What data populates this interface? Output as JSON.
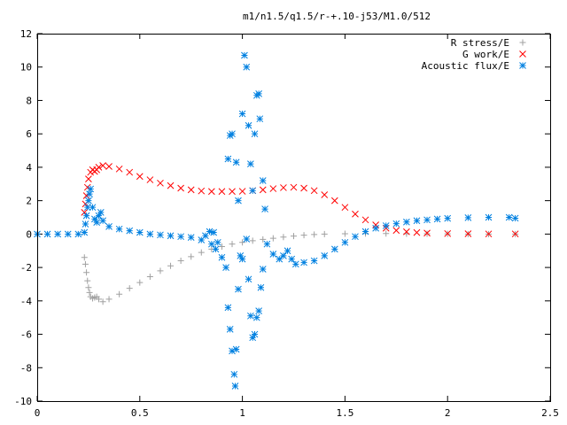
{
  "chart_data": {
    "type": "scatter",
    "title": "m1/n1.5/q1.5/r-+.10-j53/M1.0/512",
    "xlabel": "",
    "ylabel": "",
    "xlim": [
      0,
      2.5
    ],
    "ylim": [
      -10,
      12
    ],
    "xticks": [
      "0",
      "0.5",
      "1",
      "1.5",
      "2",
      "2.5"
    ],
    "xtick_values": [
      0,
      0.5,
      1,
      1.5,
      2,
      2.5
    ],
    "yticks": [
      "-10",
      "-8",
      "-6",
      "-4",
      "-2",
      "0",
      "2",
      "4",
      "6",
      "8",
      "10",
      "12"
    ],
    "ytick_values": [
      -10,
      -8,
      -6,
      -4,
      -2,
      0,
      2,
      4,
      6,
      8,
      10,
      12
    ],
    "grid": false,
    "legend_position": "top-right",
    "series": [
      {
        "name": "R stress/E",
        "marker": "plus",
        "color": "#a0a0a0",
        "points": [
          [
            0.23,
            -1.4
          ],
          [
            0.235,
            -1.8
          ],
          [
            0.24,
            -2.3
          ],
          [
            0.245,
            -2.8
          ],
          [
            0.25,
            -3.2
          ],
          [
            0.255,
            -3.5
          ],
          [
            0.26,
            -3.75
          ],
          [
            0.27,
            -3.85
          ],
          [
            0.28,
            -3.8
          ],
          [
            0.29,
            -3.75
          ],
          [
            0.3,
            -3.9
          ],
          [
            0.32,
            -4.05
          ],
          [
            0.35,
            -3.9
          ],
          [
            0.4,
            -3.6
          ],
          [
            0.45,
            -3.25
          ],
          [
            0.5,
            -2.9
          ],
          [
            0.55,
            -2.55
          ],
          [
            0.6,
            -2.2
          ],
          [
            0.65,
            -1.9
          ],
          [
            0.7,
            -1.6
          ],
          [
            0.75,
            -1.35
          ],
          [
            0.8,
            -1.1
          ],
          [
            0.85,
            -0.9
          ],
          [
            0.9,
            -0.75
          ],
          [
            0.95,
            -0.6
          ],
          [
            1.0,
            -0.5
          ],
          [
            1.05,
            -0.4
          ],
          [
            1.1,
            -0.32
          ],
          [
            1.15,
            -0.25
          ],
          [
            1.2,
            -0.18
          ],
          [
            1.25,
            -0.12
          ],
          [
            1.3,
            -0.07
          ],
          [
            1.35,
            -0.03
          ],
          [
            1.4,
            0.0
          ],
          [
            1.5,
            0.02
          ],
          [
            1.6,
            0.03
          ],
          [
            1.7,
            0.03
          ],
          [
            1.8,
            0.02
          ],
          [
            1.9,
            0.02
          ],
          [
            2.0,
            0.01
          ],
          [
            2.1,
            0.0
          ],
          [
            2.2,
            0.0
          ],
          [
            2.33,
            0.0
          ]
        ]
      },
      {
        "name": "G work/E",
        "marker": "cross",
        "color": "#ff0000",
        "points": [
          [
            0.23,
            1.3
          ],
          [
            0.235,
            1.8
          ],
          [
            0.24,
            2.3
          ],
          [
            0.245,
            2.8
          ],
          [
            0.25,
            3.3
          ],
          [
            0.26,
            3.7
          ],
          [
            0.27,
            3.85
          ],
          [
            0.28,
            3.75
          ],
          [
            0.29,
            3.85
          ],
          [
            0.3,
            4.0
          ],
          [
            0.32,
            4.1
          ],
          [
            0.35,
            4.05
          ],
          [
            0.4,
            3.9
          ],
          [
            0.45,
            3.7
          ],
          [
            0.5,
            3.45
          ],
          [
            0.55,
            3.25
          ],
          [
            0.6,
            3.05
          ],
          [
            0.65,
            2.9
          ],
          [
            0.7,
            2.75
          ],
          [
            0.75,
            2.65
          ],
          [
            0.8,
            2.58
          ],
          [
            0.85,
            2.55
          ],
          [
            0.9,
            2.55
          ],
          [
            0.95,
            2.55
          ],
          [
            1.0,
            2.56
          ],
          [
            1.05,
            2.6
          ],
          [
            1.1,
            2.65
          ],
          [
            1.15,
            2.72
          ],
          [
            1.2,
            2.78
          ],
          [
            1.25,
            2.8
          ],
          [
            1.3,
            2.75
          ],
          [
            1.35,
            2.6
          ],
          [
            1.4,
            2.35
          ],
          [
            1.45,
            2.0
          ],
          [
            1.5,
            1.6
          ],
          [
            1.55,
            1.2
          ],
          [
            1.6,
            0.85
          ],
          [
            1.65,
            0.55
          ],
          [
            1.7,
            0.35
          ],
          [
            1.75,
            0.22
          ],
          [
            1.8,
            0.14
          ],
          [
            1.85,
            0.09
          ],
          [
            1.9,
            0.06
          ],
          [
            2.0,
            0.03
          ],
          [
            2.1,
            0.02
          ],
          [
            2.2,
            0.01
          ],
          [
            2.33,
            0.01
          ]
        ]
      },
      {
        "name": "Acoustic flux/E",
        "marker": "star",
        "color": "#0080e0",
        "points": [
          [
            0.0,
            0.0
          ],
          [
            0.05,
            0.0
          ],
          [
            0.1,
            0.0
          ],
          [
            0.15,
            0.0
          ],
          [
            0.2,
            0.0
          ],
          [
            0.23,
            0.1
          ],
          [
            0.235,
            0.6
          ],
          [
            0.24,
            1.1
          ],
          [
            0.245,
            1.6
          ],
          [
            0.25,
            2.0
          ],
          [
            0.255,
            2.4
          ],
          [
            0.26,
            2.7
          ],
          [
            0.27,
            1.6
          ],
          [
            0.28,
            0.9
          ],
          [
            0.29,
            0.7
          ],
          [
            0.3,
            1.1
          ],
          [
            0.31,
            1.3
          ],
          [
            0.32,
            0.8
          ],
          [
            0.35,
            0.45
          ],
          [
            0.4,
            0.3
          ],
          [
            0.45,
            0.2
          ],
          [
            0.5,
            0.1
          ],
          [
            0.55,
            0.0
          ],
          [
            0.6,
            -0.05
          ],
          [
            0.65,
            -0.1
          ],
          [
            0.7,
            -0.15
          ],
          [
            0.75,
            -0.2
          ],
          [
            0.8,
            -0.35
          ],
          [
            0.82,
            -0.1
          ],
          [
            0.84,
            0.15
          ],
          [
            0.85,
            -0.6
          ],
          [
            0.86,
            0.1
          ],
          [
            0.87,
            -0.9
          ],
          [
            0.88,
            -0.5
          ],
          [
            0.9,
            -1.4
          ],
          [
            0.92,
            -2.0
          ],
          [
            0.93,
            -4.4
          ],
          [
            0.94,
            -5.7
          ],
          [
            0.95,
            -7.0
          ],
          [
            0.96,
            -8.4
          ],
          [
            0.965,
            -9.1
          ],
          [
            0.97,
            -6.9
          ],
          [
            0.98,
            -3.3
          ],
          [
            0.99,
            -1.3
          ],
          [
            0.93,
            4.5
          ],
          [
            0.94,
            5.9
          ],
          [
            0.95,
            6.0
          ],
          [
            0.97,
            4.3
          ],
          [
            0.98,
            2.0
          ],
          [
            1.0,
            7.2
          ],
          [
            1.01,
            10.7
          ],
          [
            1.02,
            10.0
          ],
          [
            1.03,
            6.5
          ],
          [
            1.04,
            4.2
          ],
          [
            1.05,
            2.6
          ],
          [
            1.06,
            6.0
          ],
          [
            1.07,
            8.3
          ],
          [
            1.08,
            8.4
          ],
          [
            1.085,
            6.9
          ],
          [
            1.1,
            3.2
          ],
          [
            1.11,
            1.5
          ],
          [
            1.03,
            -2.7
          ],
          [
            1.04,
            -4.9
          ],
          [
            1.05,
            -6.2
          ],
          [
            1.06,
            -6.0
          ],
          [
            1.07,
            -5.0
          ],
          [
            1.08,
            -4.6
          ],
          [
            1.09,
            -3.2
          ],
          [
            1.1,
            -2.1
          ],
          [
            1.02,
            -0.3
          ],
          [
            1.0,
            -1.5
          ],
          [
            1.12,
            -0.6
          ],
          [
            1.15,
            -1.2
          ],
          [
            1.18,
            -1.5
          ],
          [
            1.2,
            -1.3
          ],
          [
            1.22,
            -1.0
          ],
          [
            1.24,
            -1.5
          ],
          [
            1.26,
            -1.8
          ],
          [
            1.3,
            -1.7
          ],
          [
            1.35,
            -1.6
          ],
          [
            1.4,
            -1.3
          ],
          [
            1.45,
            -0.9
          ],
          [
            1.5,
            -0.5
          ],
          [
            1.55,
            -0.15
          ],
          [
            1.6,
            0.15
          ],
          [
            1.65,
            0.35
          ],
          [
            1.7,
            0.5
          ],
          [
            1.75,
            0.62
          ],
          [
            1.8,
            0.72
          ],
          [
            1.85,
            0.8
          ],
          [
            1.9,
            0.85
          ],
          [
            1.95,
            0.9
          ],
          [
            2.0,
            0.94
          ],
          [
            2.1,
            0.98
          ],
          [
            2.2,
            1.0
          ],
          [
            2.3,
            1.0
          ],
          [
            2.33,
            0.95
          ]
        ]
      }
    ]
  }
}
